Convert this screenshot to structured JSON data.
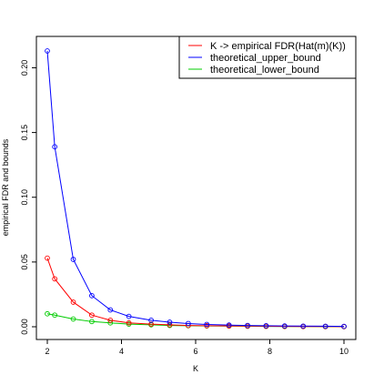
{
  "chart_data": {
    "type": "line",
    "title": "",
    "xlabel": "K",
    "ylabel": "empirical FDR and bounds",
    "xlim": [
      2,
      10
    ],
    "ylim": [
      0,
      0.22
    ],
    "x_ticks": [
      "2",
      "4",
      "6",
      "8",
      "10"
    ],
    "y_ticks": [
      "0.00",
      "0.05",
      "0.10",
      "0.15",
      "0.20"
    ],
    "grid": false,
    "legend_position": "top-right",
    "x": [
      2.0,
      2.2,
      2.7,
      3.2,
      3.7,
      4.2,
      4.8,
      5.3,
      5.8,
      6.3,
      6.9,
      7.4,
      7.9,
      8.4,
      8.9,
      9.5,
      10.0
    ],
    "series": [
      {
        "name": "K -> empirical FDR(Hat(m)(K))",
        "color": "#ff0000",
        "values": [
          0.053,
          0.037,
          0.019,
          0.009,
          0.005,
          0.003,
          0.002,
          0.0015,
          0.001,
          0.0008,
          0.0006,
          0.0005,
          0.0004,
          0.0003,
          0.0002,
          0.0002,
          0.0001
        ]
      },
      {
        "name": "theoretical_upper_bound",
        "color": "#0000ff",
        "values": [
          0.213,
          0.139,
          0.052,
          0.024,
          0.013,
          0.008,
          0.005,
          0.0035,
          0.0025,
          0.0018,
          0.0013,
          0.001,
          0.0008,
          0.0006,
          0.0005,
          0.0004,
          0.0003
        ]
      },
      {
        "name": "theoretical_lower_bound",
        "color": "#00cc00",
        "values": [
          0.01,
          0.009,
          0.006,
          0.004,
          0.003,
          0.002,
          0.0015,
          0.001,
          0.0008,
          0.0006,
          0.0005,
          0.0004,
          0.0003,
          0.0002,
          0.0002,
          0.0001,
          0.0001
        ]
      }
    ]
  }
}
